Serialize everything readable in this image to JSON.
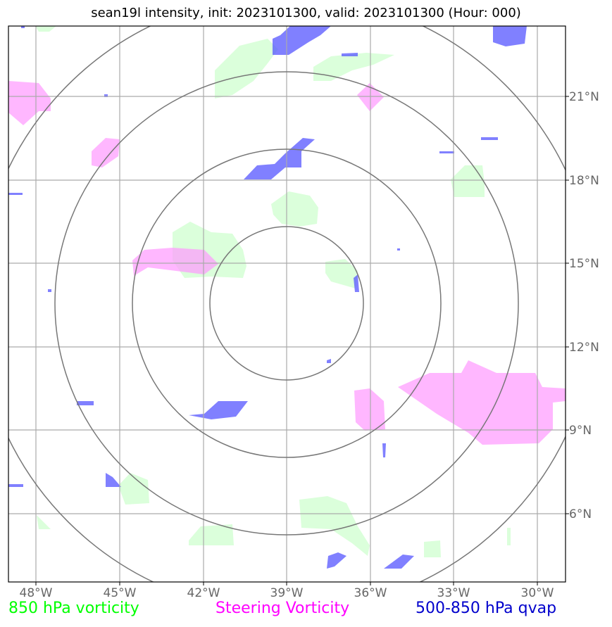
{
  "title": "sean19l intensity, init: 2023101300, valid: 2023101300 (Hour: 000)",
  "legend": [
    {
      "label": "850 hPa vorticity",
      "color": "#00ff00"
    },
    {
      "label": "Steering Vorticity",
      "color": "#ff00ff"
    },
    {
      "label": "500-850 hPa qvap",
      "color": "#0000cc"
    }
  ],
  "x_ticks": [
    "48°W",
    "45°W",
    "42°W",
    "39°W",
    "36°W",
    "33°W",
    "30°W"
  ],
  "y_ticks": [
    "21°N",
    "18°N",
    "15°N",
    "12°N",
    "9°N",
    "6°N"
  ],
  "fill_colors": {
    "vorticity_850": "#ccffcc",
    "steering": "#ff99ff",
    "qvap": "#5555ff"
  },
  "ring_color": "#777777",
  "grid_color": "#aaaaaa"
}
